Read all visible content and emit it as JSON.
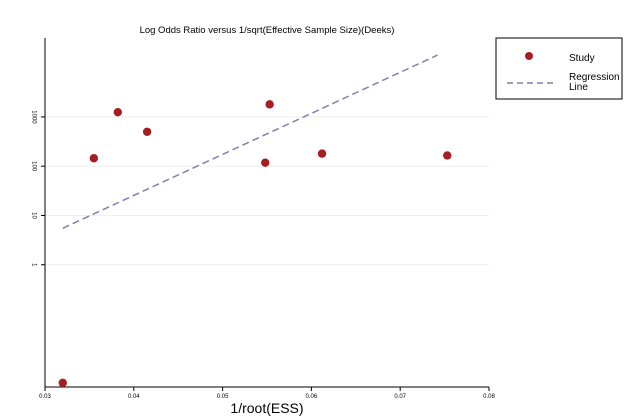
{
  "chart_data": {
    "type": "scatter",
    "title": "Log Odds Ratio versus 1/sqrt(Effective Sample Size)(Deeks)",
    "xlabel": "1/root(ESS)",
    "ylabel": "",
    "y_scale": "log",
    "xlim": [
      0.03,
      0.08
    ],
    "ylim": [
      0.0033,
      40000
    ],
    "x_ticks": [
      {
        "value": 0.03,
        "label": "0.03"
      },
      {
        "value": 0.04,
        "label": "0.04"
      },
      {
        "value": 0.05,
        "label": "0.05"
      },
      {
        "value": 0.06,
        "label": "0.06"
      },
      {
        "value": 0.07,
        "label": "0.07"
      },
      {
        "value": 0.08,
        "label": "0.08"
      }
    ],
    "y_ticks": [
      {
        "value": 1,
        "label": "1"
      },
      {
        "value": 10,
        "label": "10"
      },
      {
        "value": 100,
        "label": "100"
      },
      {
        "value": 1000,
        "label": "1000"
      }
    ],
    "grid": "horizontal",
    "legend": "top-right",
    "series": [
      {
        "name": "Study",
        "type": "scatter",
        "color": "#a61e23",
        "points": [
          {
            "x": 0.032,
            "y": 0.004
          },
          {
            "x": 0.0355,
            "y": 145
          },
          {
            "x": 0.0382,
            "y": 1250
          },
          {
            "x": 0.0415,
            "y": 500
          },
          {
            "x": 0.0548,
            "y": 118
          },
          {
            "x": 0.0553,
            "y": 1800
          },
          {
            "x": 0.0612,
            "y": 180
          },
          {
            "x": 0.0753,
            "y": 165
          }
        ]
      },
      {
        "name": "Regression Line",
        "type": "line",
        "style": "dashed",
        "color": "#7f7fb2",
        "points": [
          {
            "x": 0.032,
            "y": 5.5
          },
          {
            "x": 0.0742,
            "y": 18000
          }
        ]
      }
    ]
  }
}
